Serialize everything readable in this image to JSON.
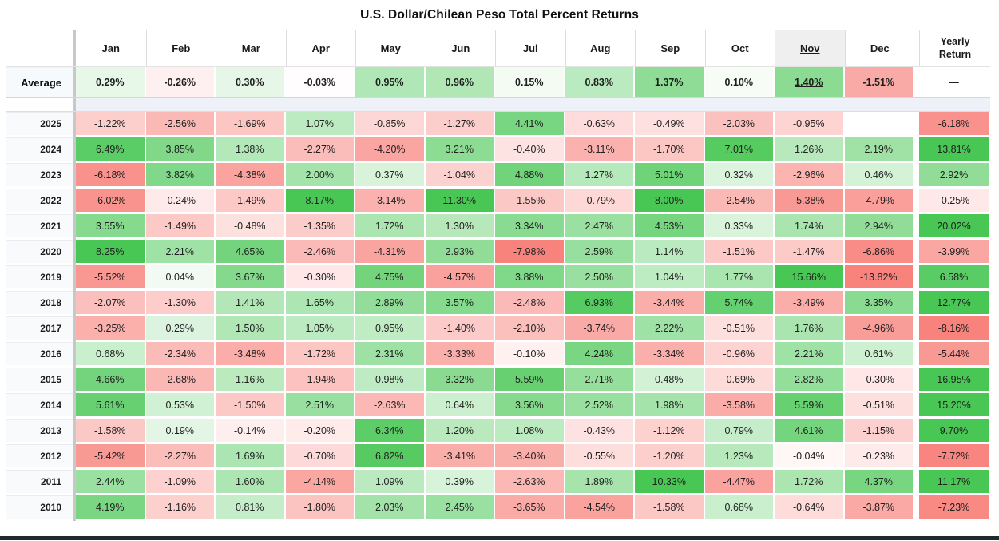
{
  "colors": {
    "positive_full": "#49c755",
    "negative_full": "#f8837d",
    "empty_cell": "#ffffff",
    "sorted_header_bg": "#efefef",
    "label_cell_bg": "#f8fafc",
    "divider_gray": "#c8c8c8",
    "gap_band_bg": "#eef2f8",
    "bottom_bar": "#23272e",
    "scale": {
      "body_cap": 8,
      "body_curve": "sqrt",
      "average_cap": 2.2,
      "average_curve": "linear"
    }
  },
  "chart_data": {
    "type": "heatmap",
    "title": "U.S. Dollar/Chilean Peso Total Percent Returns",
    "columns": [
      "Jan",
      "Feb",
      "Mar",
      "Apr",
      "May",
      "Jun",
      "Jul",
      "Aug",
      "Sep",
      "Oct",
      "Nov",
      "Dec"
    ],
    "yearly_column": "Yearly Return",
    "sorted_column": "Nov",
    "average_row": {
      "label": "Average",
      "monthly": [
        "0.29%",
        "-0.26%",
        "0.30%",
        "-0.03%",
        "0.95%",
        "0.96%",
        "0.15%",
        "0.83%",
        "1.37%",
        "0.10%",
        "1.40%",
        "-1.51%"
      ],
      "yearly": "—"
    },
    "rows": [
      {
        "year": "2025",
        "monthly": [
          "-1.22%",
          "-2.56%",
          "-1.69%",
          "1.07%",
          "-0.85%",
          "-1.27%",
          "4.41%",
          "-0.63%",
          "-0.49%",
          "-2.03%",
          "-0.95%",
          ""
        ],
        "yearly": "-6.18%"
      },
      {
        "year": "2024",
        "monthly": [
          "6.49%",
          "3.85%",
          "1.38%",
          "-2.27%",
          "-4.20%",
          "3.21%",
          "-0.40%",
          "-3.11%",
          "-1.70%",
          "7.01%",
          "1.26%",
          "2.19%"
        ],
        "yearly": "13.81%"
      },
      {
        "year": "2023",
        "monthly": [
          "-6.18%",
          "3.82%",
          "-4.38%",
          "2.00%",
          "0.37%",
          "-1.04%",
          "4.88%",
          "1.27%",
          "5.01%",
          "0.32%",
          "-2.96%",
          "0.46%"
        ],
        "yearly": "2.92%"
      },
      {
        "year": "2022",
        "monthly": [
          "-6.02%",
          "-0.24%",
          "-1.49%",
          "8.17%",
          "-3.14%",
          "11.30%",
          "-1.55%",
          "-0.79%",
          "8.00%",
          "-2.54%",
          "-5.38%",
          "-4.79%"
        ],
        "yearly": "-0.25%"
      },
      {
        "year": "2021",
        "monthly": [
          "3.55%",
          "-1.49%",
          "-0.48%",
          "-1.35%",
          "1.72%",
          "1.30%",
          "3.34%",
          "2.47%",
          "4.53%",
          "0.33%",
          "1.74%",
          "2.94%"
        ],
        "yearly": "20.02%"
      },
      {
        "year": "2020",
        "monthly": [
          "8.25%",
          "2.21%",
          "4.65%",
          "-2.46%",
          "-4.31%",
          "2.93%",
          "-7.98%",
          "2.59%",
          "1.14%",
          "-1.51%",
          "-1.47%",
          "-6.86%"
        ],
        "yearly": "-3.99%"
      },
      {
        "year": "2019",
        "monthly": [
          "-5.52%",
          "0.04%",
          "3.67%",
          "-0.30%",
          "4.75%",
          "-4.57%",
          "3.88%",
          "2.50%",
          "1.04%",
          "1.77%",
          "15.66%",
          "-13.82%"
        ],
        "yearly": "6.58%"
      },
      {
        "year": "2018",
        "monthly": [
          "-2.07%",
          "-1.30%",
          "1.41%",
          "1.65%",
          "2.89%",
          "3.57%",
          "-2.48%",
          "6.93%",
          "-3.44%",
          "5.74%",
          "-3.49%",
          "3.35%"
        ],
        "yearly": "12.77%"
      },
      {
        "year": "2017",
        "monthly": [
          "-3.25%",
          "0.29%",
          "1.50%",
          "1.05%",
          "0.95%",
          "-1.40%",
          "-2.10%",
          "-3.74%",
          "2.22%",
          "-0.51%",
          "1.76%",
          "-4.96%"
        ],
        "yearly": "-8.16%"
      },
      {
        "year": "2016",
        "monthly": [
          "0.68%",
          "-2.34%",
          "-3.48%",
          "-1.72%",
          "2.31%",
          "-3.33%",
          "-0.10%",
          "4.24%",
          "-3.34%",
          "-0.96%",
          "2.21%",
          "0.61%"
        ],
        "yearly": "-5.44%"
      },
      {
        "year": "2015",
        "monthly": [
          "4.66%",
          "-2.68%",
          "1.16%",
          "-1.94%",
          "0.98%",
          "3.32%",
          "5.59%",
          "2.71%",
          "0.48%",
          "-0.69%",
          "2.82%",
          "-0.30%"
        ],
        "yearly": "16.95%"
      },
      {
        "year": "2014",
        "monthly": [
          "5.61%",
          "0.53%",
          "-1.50%",
          "2.51%",
          "-2.63%",
          "0.64%",
          "3.56%",
          "2.52%",
          "1.98%",
          "-3.58%",
          "5.59%",
          "-0.51%"
        ],
        "yearly": "15.20%"
      },
      {
        "year": "2013",
        "monthly": [
          "-1.58%",
          "0.19%",
          "-0.14%",
          "-0.20%",
          "6.34%",
          "1.20%",
          "1.08%",
          "-0.43%",
          "-1.12%",
          "0.79%",
          "4.61%",
          "-1.15%"
        ],
        "yearly": "9.70%"
      },
      {
        "year": "2012",
        "monthly": [
          "-5.42%",
          "-2.27%",
          "1.69%",
          "-0.70%",
          "6.82%",
          "-3.41%",
          "-3.40%",
          "-0.55%",
          "-1.20%",
          "1.23%",
          "-0.04%",
          "-0.23%"
        ],
        "yearly": "-7.72%"
      },
      {
        "year": "2011",
        "monthly": [
          "2.44%",
          "-1.09%",
          "1.60%",
          "-4.14%",
          "1.09%",
          "0.39%",
          "-2.63%",
          "1.89%",
          "10.33%",
          "-4.47%",
          "1.72%",
          "4.37%"
        ],
        "yearly": "11.17%"
      },
      {
        "year": "2010",
        "monthly": [
          "4.19%",
          "-1.16%",
          "0.81%",
          "-1.80%",
          "2.03%",
          "2.45%",
          "-3.65%",
          "-4.54%",
          "-1.58%",
          "0.68%",
          "-0.64%",
          "-3.87%"
        ],
        "yearly": "-7.23%"
      }
    ]
  }
}
